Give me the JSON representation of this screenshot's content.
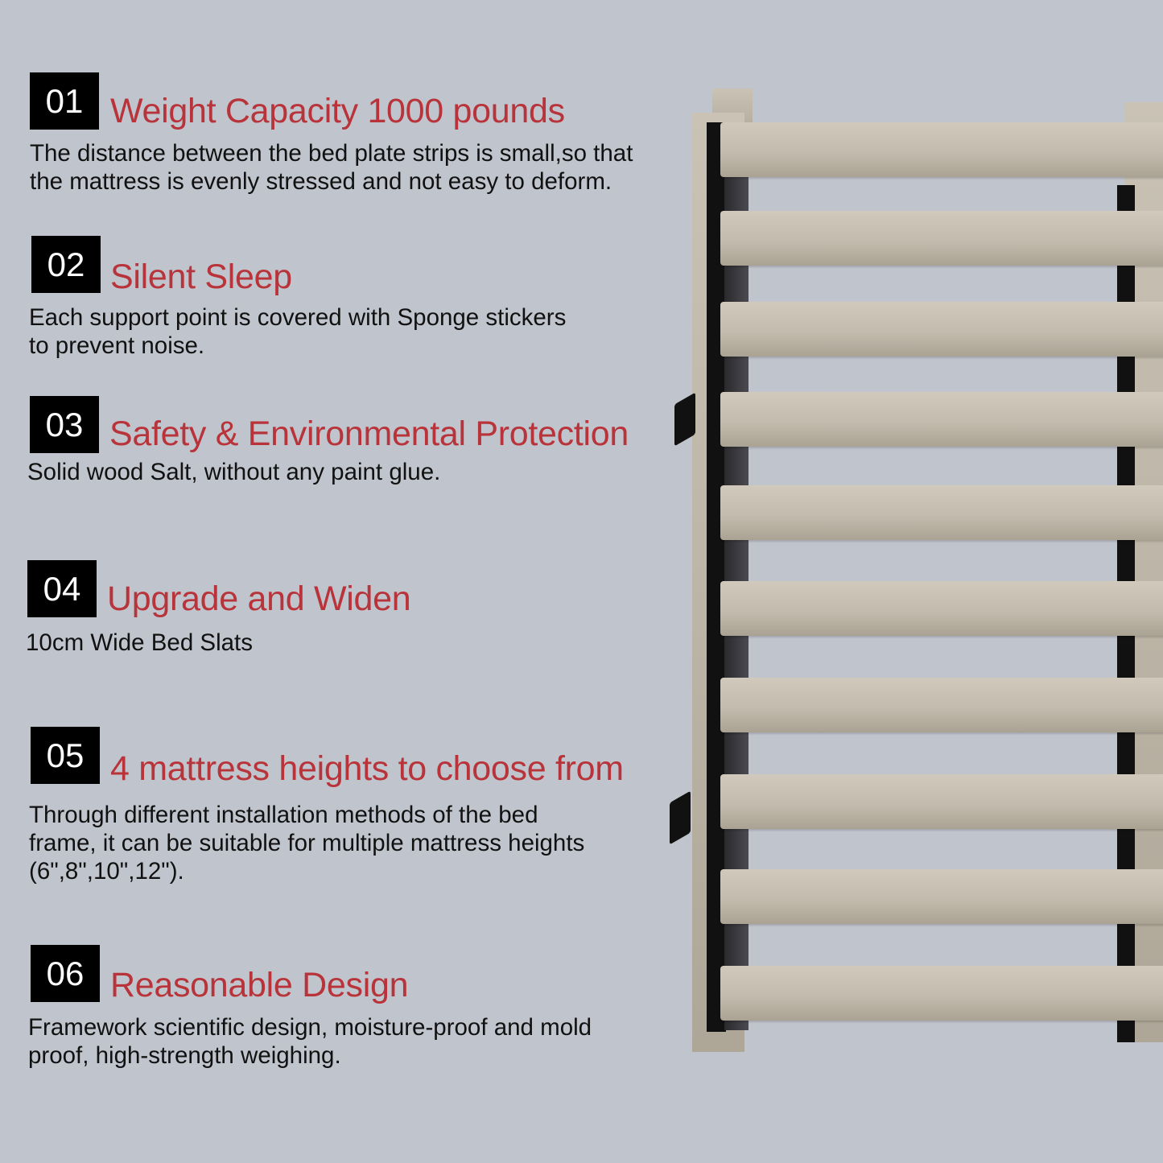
{
  "colors": {
    "background": "#c0c4cc",
    "accent": "#b8343a",
    "badge": "#000000"
  },
  "features": [
    {
      "number": "01",
      "title": "Weight Capacity 1000 pounds",
      "lines": [
        "The distance between the bed plate strips is small,so that",
        "the mattress is evenly stressed and not easy to deform."
      ]
    },
    {
      "number": "02",
      "title": "Silent Sleep",
      "lines": [
        "Each support point is covered with Sponge stickers",
        "to prevent noise."
      ]
    },
    {
      "number": "03",
      "title": "Safety & Environmental Protection",
      "lines": [
        "Solid wood Salt, without any paint glue."
      ]
    },
    {
      "number": "04",
      "title": "Upgrade and Widen",
      "lines": [
        "10cm Wide Bed Slats"
      ]
    },
    {
      "number": "05",
      "title": "4 mattress heights to choose from",
      "lines": [
        "Through different installation methods of the bed",
        "frame, it can be suitable for multiple mattress heights",
        "(6\",8\",10\",12\")."
      ]
    },
    {
      "number": "06",
      "title": "Reasonable Design",
      "lines": [
        "Framework scientific design, moisture-proof and mold",
        "proof, high-strength weighing."
      ]
    }
  ]
}
